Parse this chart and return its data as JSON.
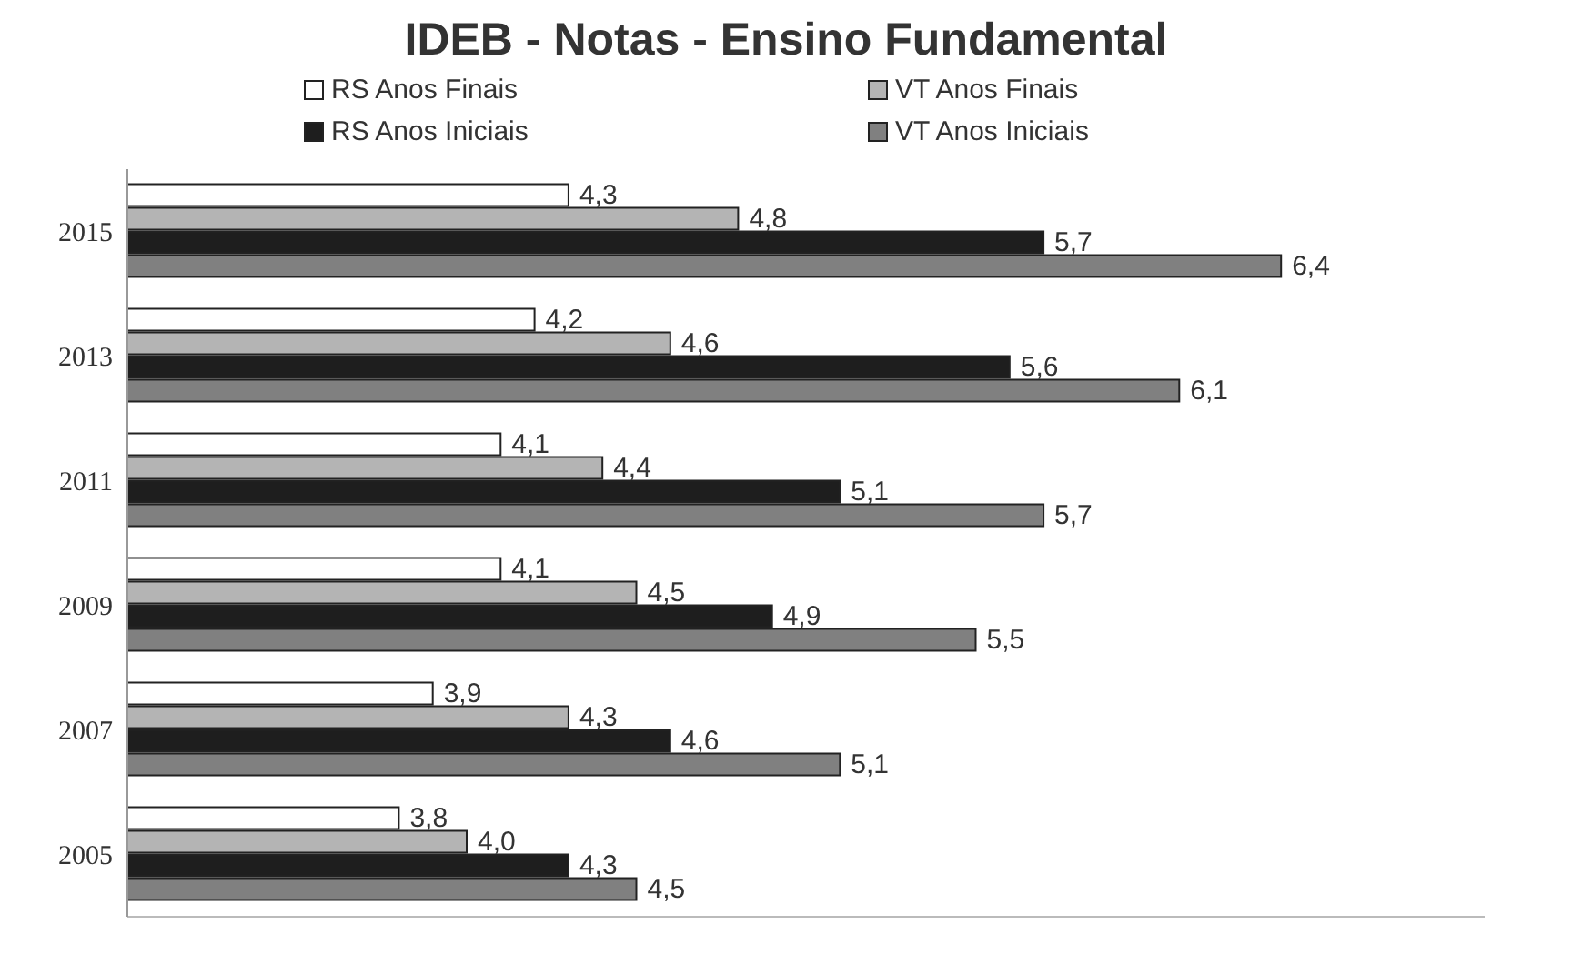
{
  "chart_data": {
    "type": "bar",
    "orientation": "horizontal",
    "title": "IDEB - Notas - Ensino Fundamental",
    "categories": [
      "2015",
      "2013",
      "2011",
      "2009",
      "2007",
      "2005"
    ],
    "series": [
      {
        "name": "RS Anos Finais",
        "color": "#ffffff",
        "values": [
          4.3,
          4.2,
          4.1,
          4.1,
          3.9,
          3.8
        ],
        "value_labels": [
          "4,3",
          "4,2",
          "4,1",
          "4,1",
          "3,9",
          "3,8"
        ]
      },
      {
        "name": "VT Anos Finais",
        "color": "#b4b4b4",
        "values": [
          4.8,
          4.6,
          4.4,
          4.5,
          4.3,
          4.0
        ],
        "value_labels": [
          "4,8",
          "4,6",
          "4,4",
          "4,5",
          "4,3",
          "4,0"
        ]
      },
      {
        "name": "RS Anos Iniciais",
        "color": "#1e1e1e",
        "values": [
          5.7,
          5.6,
          5.1,
          4.9,
          4.6,
          4.3
        ],
        "value_labels": [
          "5,7",
          "5,6",
          "5,1",
          "4,9",
          "4,6",
          "4,3"
        ]
      },
      {
        "name": "VT Anos Iniciais",
        "color": "#808080",
        "values": [
          6.4,
          6.1,
          5.7,
          5.5,
          5.1,
          4.5
        ],
        "value_labels": [
          "6,4",
          "6,1",
          "5,7",
          "5,5",
          "5,1",
          "4,5"
        ]
      }
    ],
    "xlim": [
      3,
      7
    ],
    "tick_labels": "y",
    "legend": "top"
  }
}
